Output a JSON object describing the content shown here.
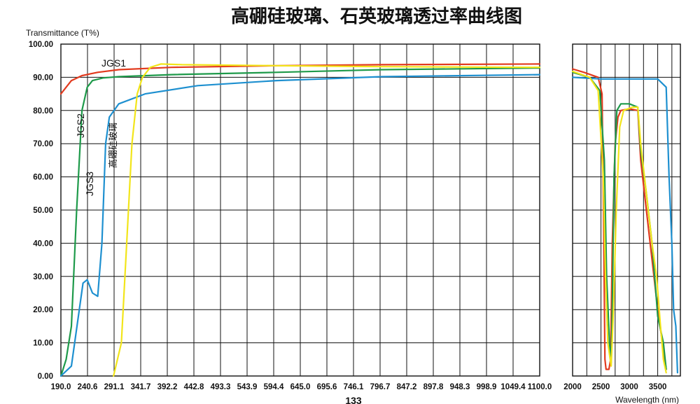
{
  "chart_data": {
    "type": "line",
    "title": "高硼硅玻璃、石英玻璃透过率曲线图",
    "ylabel": "Transmittance (T%)",
    "xlabel": "Wavelength (nm)",
    "ylim": [
      0,
      100
    ],
    "yticks": [
      "0.00",
      "10.00",
      "20.00",
      "30.00",
      "40.00",
      "50.00",
      "60.00",
      "70.00",
      "80.00",
      "90.00",
      "100.00"
    ],
    "grid": true,
    "panels": [
      {
        "id": "uv-vis",
        "xlim": [
          190.0,
          1100.0
        ],
        "xticks": [
          "190.0",
          "240.6",
          "291.1",
          "341.7",
          "392.2",
          "442.8",
          "493.3",
          "543.9",
          "594.4",
          "645.0",
          "695.6",
          "746.1",
          "796.7",
          "847.2",
          "897.8",
          "948.3",
          "998.9",
          "1049.4",
          "1100.0"
        ]
      },
      {
        "id": "ir",
        "xlim": [
          2000,
          3900
        ],
        "xticks": [
          "2000",
          "2500",
          "3000",
          "3500"
        ]
      }
    ],
    "series": [
      {
        "name": "JGS1",
        "color": "#e23a1e",
        "points_uv": [
          [
            190,
            85
          ],
          [
            200,
            87
          ],
          [
            210,
            89
          ],
          [
            230,
            90.5
          ],
          [
            260,
            91.5
          ],
          [
            300,
            92.3
          ],
          [
            400,
            93
          ],
          [
            600,
            93.5
          ],
          [
            800,
            93.8
          ],
          [
            1100,
            94
          ]
        ],
        "points_ir": [
          [
            2000,
            92.5
          ],
          [
            2200,
            91.5
          ],
          [
            2450,
            90
          ],
          [
            2520,
            85
          ],
          [
            2550,
            40
          ],
          [
            2570,
            5
          ],
          [
            2590,
            2
          ],
          [
            2640,
            2
          ],
          [
            2670,
            5
          ],
          [
            2700,
            40
          ],
          [
            2750,
            70
          ],
          [
            2800,
            78
          ],
          [
            2850,
            80
          ],
          [
            3000,
            80.5
          ],
          [
            3150,
            80
          ],
          [
            3200,
            65
          ],
          [
            3300,
            50
          ],
          [
            3400,
            35
          ],
          [
            3500,
            20
          ],
          [
            3600,
            8
          ],
          [
            3650,
            2
          ]
        ]
      },
      {
        "name": "JGS2",
        "color": "#1e9a4a",
        "points_uv": [
          [
            190,
            0
          ],
          [
            200,
            5
          ],
          [
            210,
            15
          ],
          [
            220,
            50
          ],
          [
            230,
            80
          ],
          [
            240,
            87
          ],
          [
            250,
            89
          ],
          [
            270,
            89.8
          ],
          [
            300,
            90.2
          ],
          [
            400,
            90.8
          ],
          [
            600,
            91.5
          ],
          [
            800,
            92.3
          ],
          [
            1100,
            92.8
          ]
        ],
        "points_ir": [
          [
            2000,
            91.5
          ],
          [
            2300,
            90
          ],
          [
            2480,
            86
          ],
          [
            2560,
            65
          ],
          [
            2600,
            30
          ],
          [
            2650,
            10
          ],
          [
            2680,
            4
          ],
          [
            2700,
            20
          ],
          [
            2730,
            60
          ],
          [
            2780,
            80
          ],
          [
            2850,
            82
          ],
          [
            3000,
            82
          ],
          [
            3150,
            81
          ],
          [
            3200,
            68
          ],
          [
            3300,
            55
          ],
          [
            3400,
            40
          ],
          [
            3500,
            18
          ],
          [
            3600,
            10
          ],
          [
            3650,
            2
          ]
        ]
      },
      {
        "name": "JGS3",
        "color": "#1e90d0",
        "points_uv": [
          [
            190,
            0
          ],
          [
            210,
            3
          ],
          [
            225,
            20
          ],
          [
            232,
            28
          ],
          [
            240,
            29
          ],
          [
            250,
            25
          ],
          [
            260,
            24
          ],
          [
            268,
            40
          ],
          [
            275,
            70
          ],
          [
            282,
            78
          ],
          [
            300,
            82
          ],
          [
            350,
            85
          ],
          [
            450,
            87.5
          ],
          [
            600,
            89
          ],
          [
            800,
            90.2
          ],
          [
            1100,
            90.8
          ]
        ],
        "points_ir": [
          [
            2000,
            90
          ],
          [
            2500,
            89.5
          ],
          [
            3000,
            89.5
          ],
          [
            3500,
            89.5
          ],
          [
            3650,
            87
          ],
          [
            3700,
            60
          ],
          [
            3750,
            40
          ],
          [
            3780,
            20
          ],
          [
            3820,
            15
          ],
          [
            3850,
            1
          ]
        ]
      },
      {
        "name": "高硼硅玻璃",
        "color": "#f2e51a",
        "points_uv": [
          [
            290,
            0
          ],
          [
            305,
            10
          ],
          [
            315,
            40
          ],
          [
            325,
            70
          ],
          [
            335,
            85
          ],
          [
            345,
            90
          ],
          [
            360,
            93
          ],
          [
            380,
            94
          ],
          [
            420,
            93.8
          ],
          [
            600,
            93.5
          ],
          [
            800,
            93.2
          ],
          [
            1100,
            93
          ]
        ],
        "points_ir": [
          [
            2000,
            91.8
          ],
          [
            2300,
            90
          ],
          [
            2450,
            86
          ],
          [
            2540,
            60
          ],
          [
            2580,
            30
          ],
          [
            2620,
            10
          ],
          [
            2680,
            3
          ],
          [
            2720,
            20
          ],
          [
            2770,
            50
          ],
          [
            2830,
            75
          ],
          [
            2900,
            80
          ],
          [
            3050,
            81
          ],
          [
            3150,
            81
          ],
          [
            3200,
            70
          ],
          [
            3300,
            55
          ],
          [
            3400,
            40
          ],
          [
            3480,
            30
          ],
          [
            3550,
            15
          ],
          [
            3600,
            5
          ],
          [
            3650,
            1
          ]
        ]
      }
    ],
    "annotations": [
      {
        "text": "JGS1",
        "series": "JGS1"
      },
      {
        "text": "JGS2",
        "series": "JGS2"
      },
      {
        "text": "JGS3",
        "series": "JGS3"
      },
      {
        "text": "高硼硅玻璃",
        "series": "高硼硅玻璃"
      }
    ],
    "footer_text": "133"
  }
}
